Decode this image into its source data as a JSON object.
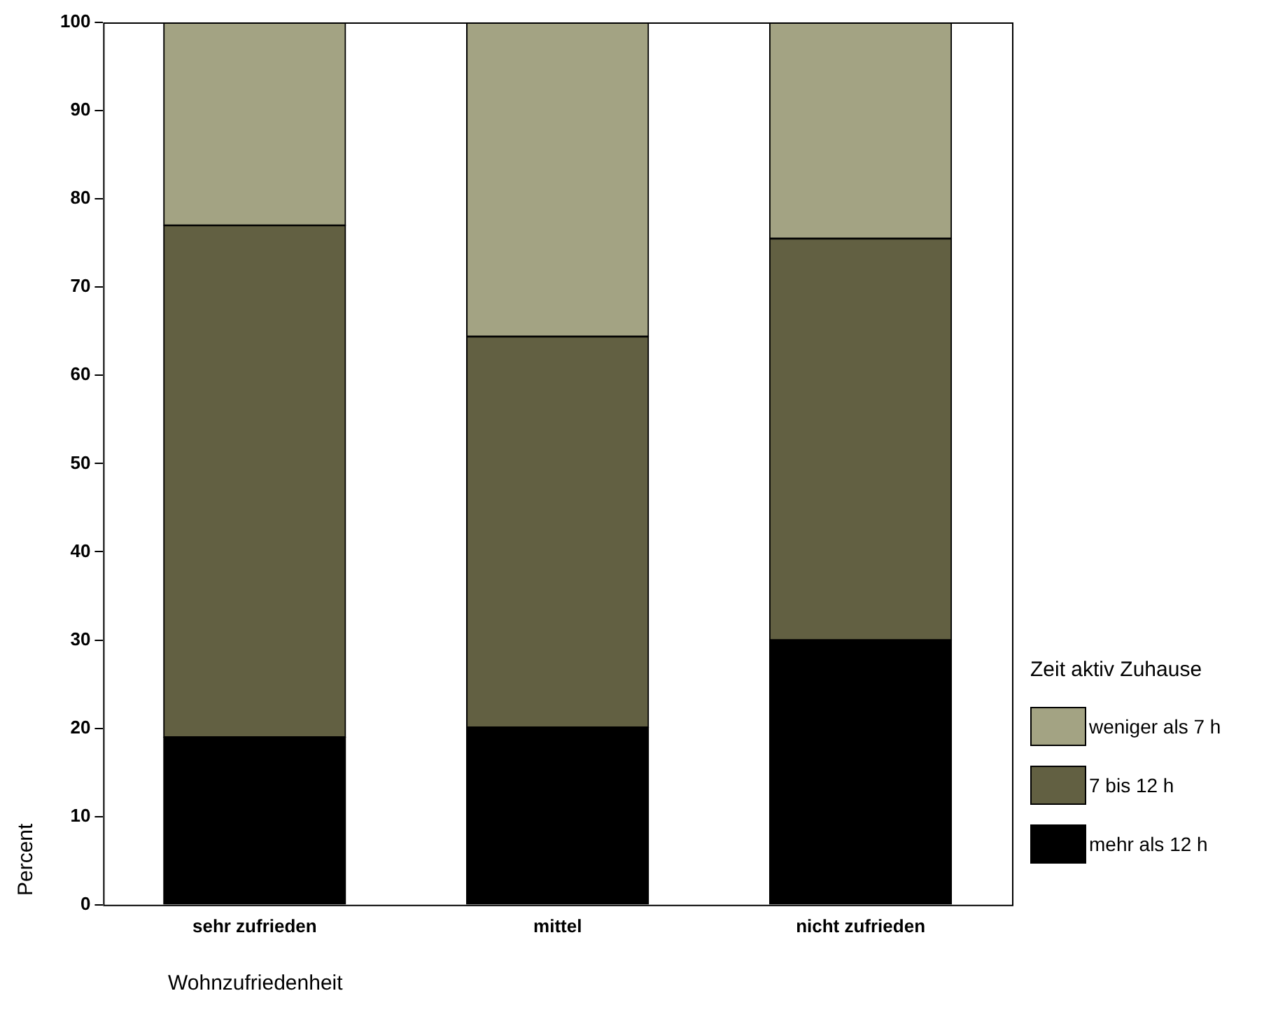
{
  "chart_data": {
    "type": "bar",
    "stacked": true,
    "xlabel": "Wohnzufriedenheit",
    "ylabel": "Percent",
    "legend_title": "Zeit aktiv Zuhause",
    "legend": "bottom right",
    "categories": [
      "sehr zufrieden",
      "mittel",
      "nicht zufrieden"
    ],
    "series": [
      {
        "name": "mehr als 12 h",
        "color": "#000000",
        "values": [
          19,
          20.1,
          30
        ]
      },
      {
        "name": "7 bis 12 h",
        "color": "#626042",
        "values": [
          58,
          44.3,
          45.5
        ]
      },
      {
        "name": "weniger als 7 h",
        "color": "#a3a383",
        "values": [
          23,
          35.6,
          24.5
        ]
      }
    ],
    "ylim": [
      0,
      100
    ],
    "yticks": [
      0,
      10,
      20,
      30,
      40,
      50,
      60,
      70,
      80,
      90,
      100
    ],
    "grid": false
  }
}
